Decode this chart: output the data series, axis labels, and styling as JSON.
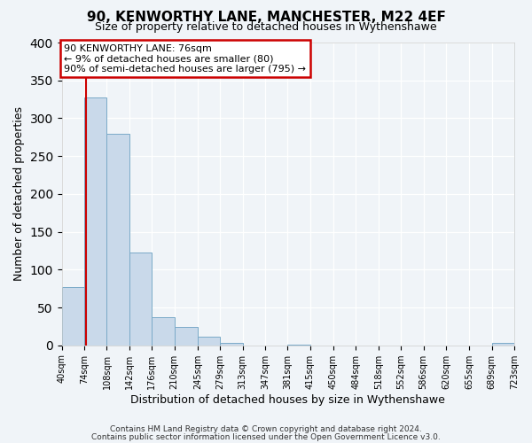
{
  "title": "90, KENWORTHY LANE, MANCHESTER, M22 4EF",
  "subtitle": "Size of property relative to detached houses in Wythenshawe",
  "xlabel": "Distribution of detached houses by size in Wythenshawe",
  "ylabel": "Number of detached properties",
  "bin_edges": [
    40,
    74,
    108,
    142,
    176,
    210,
    245,
    279,
    313,
    347,
    381,
    415,
    450,
    484,
    518,
    552,
    586,
    620,
    655,
    689,
    723
  ],
  "bar_heights": [
    77,
    328,
    280,
    122,
    37,
    24,
    11,
    3,
    0,
    0,
    1,
    0,
    0,
    0,
    0,
    0,
    0,
    0,
    0,
    3
  ],
  "bar_color": "#c9d9ea",
  "bar_edge_color": "#7aaac8",
  "property_line_x": 76,
  "property_line_color": "#cc0000",
  "ylim": [
    0,
    400
  ],
  "yticks": [
    0,
    50,
    100,
    150,
    200,
    250,
    300,
    350,
    400
  ],
  "annotation_title": "90 KENWORTHY LANE: 76sqm",
  "annotation_line1": "← 9% of detached houses are smaller (80)",
  "annotation_line2": "90% of semi-detached houses are larger (795) →",
  "annotation_box_color": "#cc0000",
  "footer_line1": "Contains HM Land Registry data © Crown copyright and database right 2024.",
  "footer_line2": "Contains public sector information licensed under the Open Government Licence v3.0.",
  "background_color": "#f0f4f8",
  "plot_background": "#f0f4f8",
  "title_fontsize": 11,
  "subtitle_fontsize": 9
}
